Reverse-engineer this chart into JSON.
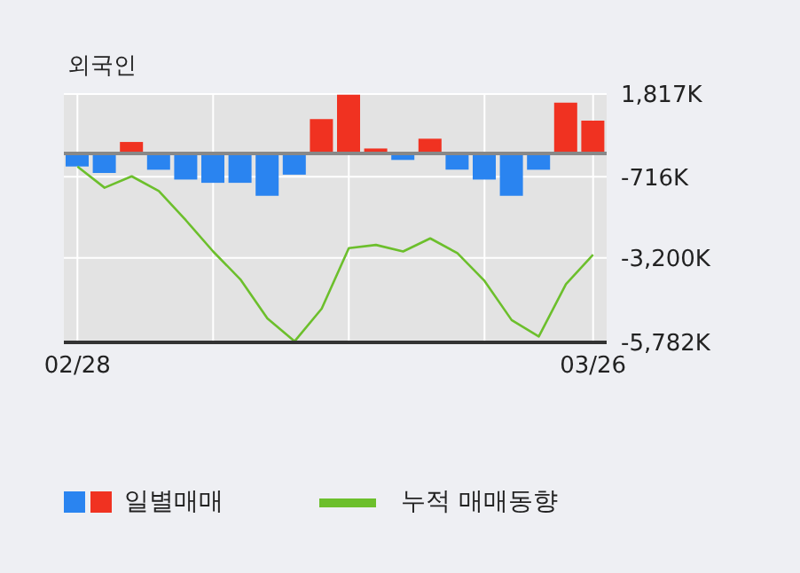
{
  "chart_data": {
    "type": "bar",
    "title": "외국인",
    "categories": [
      "02/28",
      null,
      null,
      null,
      null,
      null,
      null,
      null,
      null,
      null,
      null,
      null,
      null,
      null,
      null,
      null,
      null,
      null,
      null,
      "03/26"
    ],
    "series": [
      {
        "name": "일별매매",
        "colors": [
          "#2a84f0",
          "#2a84f0",
          "#f03221",
          "#2a84f0",
          "#2a84f0",
          "#2a84f0",
          "#2a84f0",
          "#2a84f0",
          "#2a84f0",
          "#f03221",
          "#f03221",
          "#f03221",
          "#2a84f0",
          "#f03221",
          "#2a84f0",
          "#2a84f0",
          "#2a84f0",
          "#2a84f0",
          "#f03221",
          "#f03221"
        ],
        "values": [
          -400,
          -600,
          350,
          -500,
          -800,
          -900,
          -900,
          -1300,
          -650,
          1050,
          1800,
          150,
          -200,
          450,
          -500,
          -800,
          -1300,
          -500,
          1550,
          1000
        ]
      },
      {
        "name": "누적 매매동향",
        "type": "line",
        "color": "#6cbf2c",
        "values": [
          -400,
          -1050,
          -700,
          -1150,
          -2050,
          -3000,
          -3850,
          -5050,
          -5750,
          -4750,
          -2900,
          -2800,
          -3000,
          -2600,
          -3050,
          -3900,
          -5100,
          -5600,
          -4000,
          -3100
        ]
      }
    ],
    "ylim": [
      -5782,
      1817
    ],
    "yticks": [
      {
        "value": 1817,
        "label": "1,817K"
      },
      {
        "value": -716,
        "label": "-716K"
      },
      {
        "value": -3200,
        "label": "-3,200K"
      },
      {
        "value": -5782,
        "label": "-5,782K"
      }
    ],
    "ref_lines": [
      {
        "axis": "y",
        "value": 0,
        "color": "#888888"
      }
    ],
    "grid": true,
    "legend": "bottom",
    "marker": "none"
  }
}
